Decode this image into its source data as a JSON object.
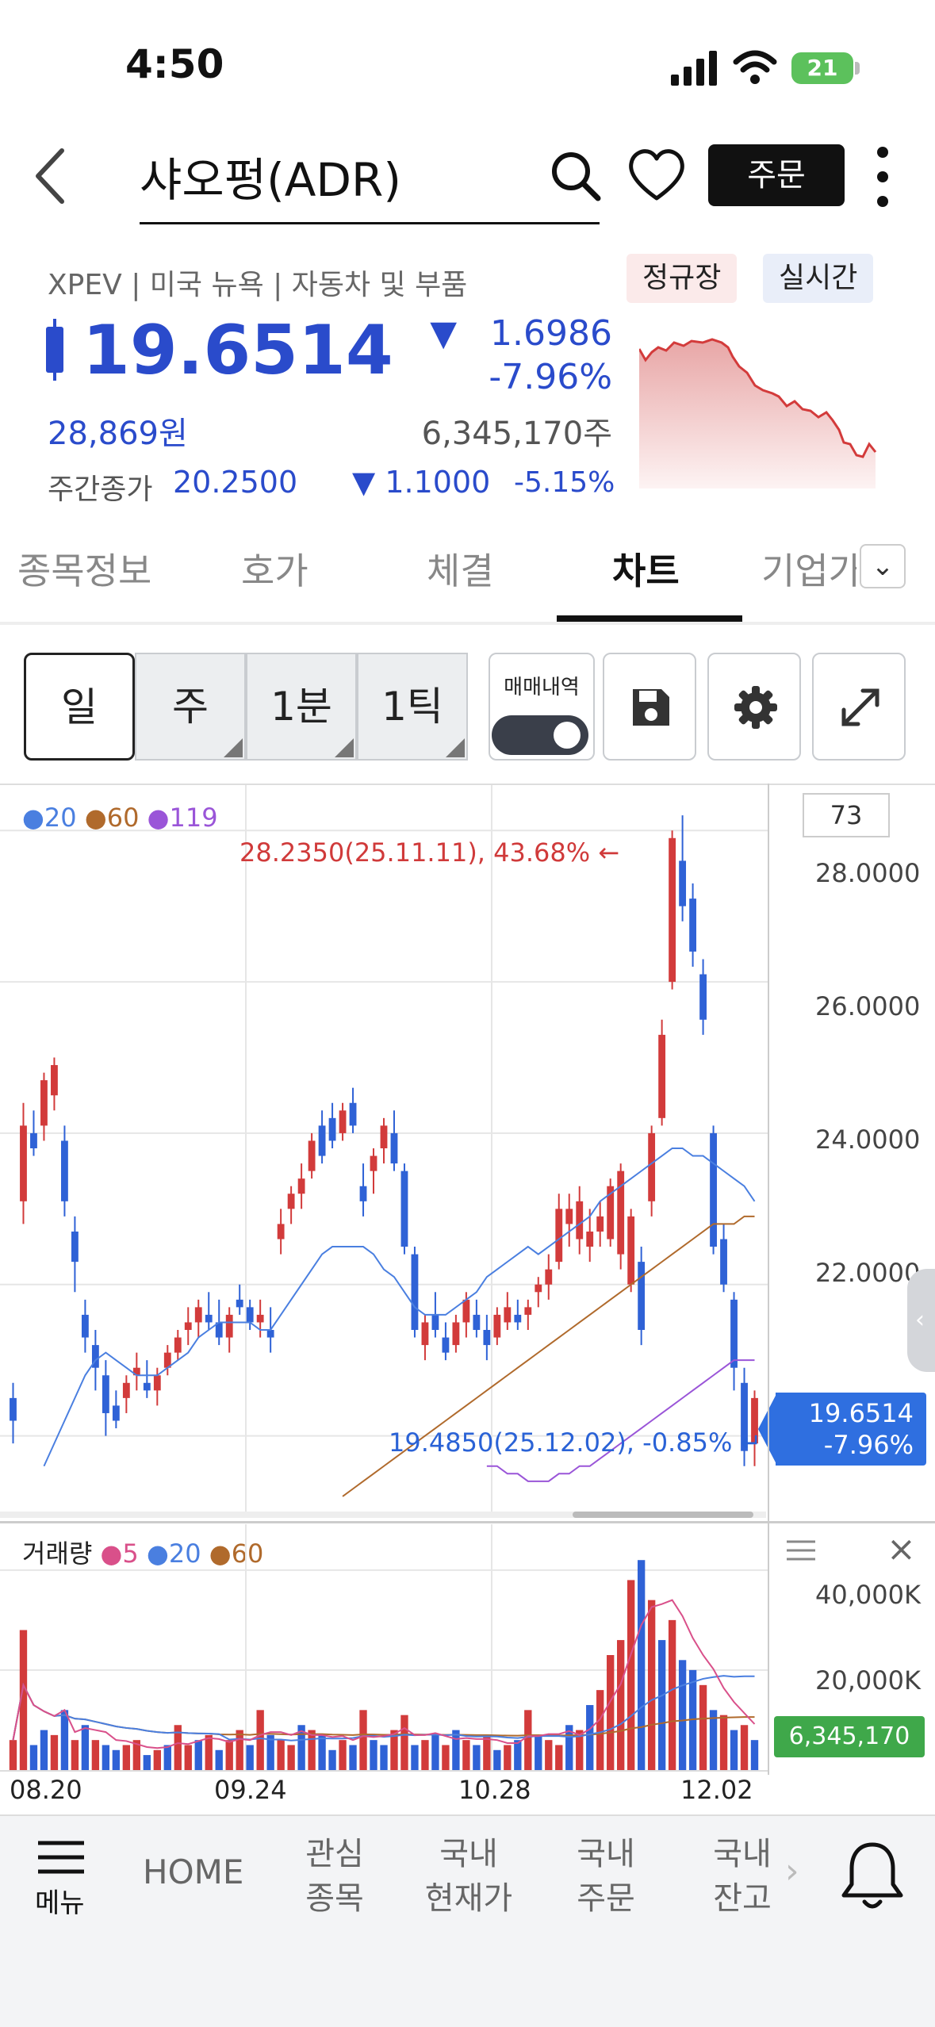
{
  "status": {
    "time": "4:50",
    "battery": "21"
  },
  "header": {
    "title": "샤오펑(ADR)",
    "order_label": "주문"
  },
  "quote": {
    "meta": "XPEV | 미국 뉴욕 | 자동차 및 부품",
    "badge_regular": "정규장",
    "badge_realtime": "실시간",
    "price": "19.6514",
    "change_abs": "1.6986",
    "change_pct": "-7.96%",
    "won_price": "28,869원",
    "volume": "6,345,170주",
    "weekly_label": "주간종가",
    "weekly_close": "20.2500",
    "weekly_change": "1.1000",
    "weekly_pct": "-5.15%",
    "down_glyph": "▼"
  },
  "tabs": [
    "종목정보",
    "호가",
    "체결",
    "차트",
    "기업가"
  ],
  "periods": [
    "일",
    "주",
    "1분",
    "1틱"
  ],
  "tools": {
    "trade_history_label": "매매내역"
  },
  "chart": {
    "ma_legend": [
      {
        "label": "20",
        "color": "#4a7fe0"
      },
      {
        "label": "60",
        "color": "#b06a2c"
      },
      {
        "label": "119",
        "color": "#9a55d8"
      }
    ],
    "count": "73",
    "y_ticks": [
      "28.0000",
      "26.0000",
      "24.0000",
      "22.0000"
    ],
    "high_label": "28.2350(25.11.11), 43.68% ←",
    "low_label": "19.4850(25.12.02), -0.85% ↵",
    "last_price": "19.6514",
    "last_pct": "-7.96%",
    "handle_glyph": "‹"
  },
  "volume_panel": {
    "title": "거래량",
    "legend": [
      {
        "label": "5",
        "color": "#d9508a"
      },
      {
        "label": "20",
        "color": "#4a7fe0"
      },
      {
        "label": "60",
        "color": "#b06a2c"
      }
    ],
    "y_ticks": [
      "40,000K",
      "20,000K"
    ],
    "current": "6,345,170",
    "close_glyph": "×"
  },
  "x_ticks": [
    "08.20",
    "09.24",
    "10.28",
    "12.02"
  ],
  "nav": {
    "menu": "메뉴",
    "home": "HOME",
    "watch_1": "관심",
    "watch_2": "종목",
    "dom_cur_1": "국내",
    "dom_cur_2": "현재가",
    "dom_order_1": "국내",
    "dom_order_2": "주문",
    "dom_bal_1": "국내",
    "dom_bal_2": "잔고",
    "next_glyph": "›"
  },
  "colors": {
    "up": "#d23b3b",
    "down": "#2f62d6",
    "accent": "#2a4bcb"
  },
  "chart_data": {
    "type": "candlestick",
    "ylim": [
      19.0,
      28.6
    ],
    "candles": [
      [
        20.5,
        20.7,
        19.9,
        20.2
      ],
      [
        23.1,
        24.4,
        22.8,
        24.1
      ],
      [
        24.0,
        24.3,
        23.7,
        23.8
      ],
      [
        24.1,
        24.8,
        23.9,
        24.7
      ],
      [
        24.5,
        25.0,
        24.3,
        24.9
      ],
      [
        23.9,
        24.1,
        22.9,
        23.1
      ],
      [
        22.7,
        22.9,
        21.9,
        22.3
      ],
      [
        21.6,
        21.8,
        21.1,
        21.3
      ],
      [
        21.2,
        21.4,
        20.6,
        20.9
      ],
      [
        20.8,
        21.0,
        20.0,
        20.3
      ],
      [
        20.4,
        20.6,
        20.1,
        20.2
      ],
      [
        20.5,
        20.8,
        20.3,
        20.7
      ],
      [
        20.8,
        21.1,
        20.6,
        20.9
      ],
      [
        20.7,
        21.0,
        20.5,
        20.6
      ],
      [
        20.6,
        20.9,
        20.4,
        20.8
      ],
      [
        20.9,
        21.2,
        20.8,
        21.1
      ],
      [
        21.1,
        21.4,
        21.0,
        21.3
      ],
      [
        21.4,
        21.7,
        21.2,
        21.5
      ],
      [
        21.5,
        21.8,
        21.3,
        21.7
      ],
      [
        21.6,
        21.9,
        21.4,
        21.5
      ],
      [
        21.5,
        21.8,
        21.2,
        21.3
      ],
      [
        21.3,
        21.7,
        21.1,
        21.6
      ],
      [
        21.8,
        22.0,
        21.6,
        21.7
      ],
      [
        21.7,
        21.8,
        21.4,
        21.5
      ],
      [
        21.5,
        21.8,
        21.3,
        21.6
      ],
      [
        21.4,
        21.7,
        21.1,
        21.3
      ],
      [
        22.6,
        23.0,
        22.4,
        22.8
      ],
      [
        23.0,
        23.3,
        22.8,
        23.2
      ],
      [
        23.2,
        23.6,
        23.0,
        23.4
      ],
      [
        23.5,
        24.0,
        23.4,
        23.9
      ],
      [
        24.1,
        24.3,
        23.6,
        23.7
      ],
      [
        24.2,
        24.4,
        23.8,
        23.9
      ],
      [
        24.0,
        24.4,
        23.9,
        24.3
      ],
      [
        24.4,
        24.6,
        24.0,
        24.1
      ],
      [
        23.3,
        23.6,
        22.9,
        23.1
      ],
      [
        23.5,
        23.8,
        23.2,
        23.7
      ],
      [
        23.8,
        24.2,
        23.6,
        24.1
      ],
      [
        24.0,
        24.3,
        23.5,
        23.6
      ],
      [
        23.5,
        23.6,
        22.4,
        22.5
      ],
      [
        22.4,
        22.5,
        21.3,
        21.4
      ],
      [
        21.2,
        21.6,
        21.0,
        21.5
      ],
      [
        21.6,
        21.9,
        21.3,
        21.4
      ],
      [
        21.3,
        21.5,
        21.0,
        21.1
      ],
      [
        21.2,
        21.6,
        21.1,
        21.5
      ],
      [
        21.5,
        21.9,
        21.3,
        21.8
      ],
      [
        21.6,
        21.8,
        21.3,
        21.4
      ],
      [
        21.4,
        21.6,
        21.0,
        21.2
      ],
      [
        21.3,
        21.7,
        21.2,
        21.6
      ],
      [
        21.5,
        21.9,
        21.4,
        21.7
      ],
      [
        21.6,
        21.8,
        21.4,
        21.5
      ],
      [
        21.6,
        21.8,
        21.4,
        21.7
      ],
      [
        21.9,
        22.1,
        21.7,
        22.0
      ],
      [
        22.0,
        22.4,
        21.8,
        22.2
      ],
      [
        22.3,
        23.2,
        22.2,
        23.0
      ],
      [
        22.8,
        23.2,
        22.5,
        23.0
      ],
      [
        22.6,
        23.3,
        22.4,
        23.1
      ],
      [
        22.5,
        23.0,
        22.3,
        22.7
      ],
      [
        22.7,
        23.1,
        22.5,
        22.9
      ],
      [
        22.6,
        23.4,
        22.5,
        23.3
      ],
      [
        22.4,
        23.6,
        22.2,
        23.5
      ],
      [
        22.0,
        23.0,
        21.9,
        22.9
      ],
      [
        22.3,
        22.5,
        21.2,
        21.4
      ],
      [
        23.1,
        24.1,
        22.9,
        24.0
      ],
      [
        24.2,
        25.5,
        24.1,
        25.3
      ],
      [
        26.0,
        28.0,
        25.9,
        27.9
      ],
      [
        27.6,
        28.2,
        26.8,
        27.0
      ],
      [
        27.1,
        27.3,
        26.2,
        26.4
      ],
      [
        26.1,
        26.3,
        25.3,
        25.5
      ],
      [
        24.0,
        24.1,
        22.4,
        22.5
      ],
      [
        22.6,
        22.8,
        21.9,
        22.0
      ],
      [
        21.8,
        21.9,
        20.6,
        20.9
      ],
      [
        20.7,
        20.9,
        19.6,
        19.8
      ],
      [
        19.9,
        20.6,
        19.6,
        20.5
      ]
    ],
    "ma20": [
      19.6,
      19.9,
      20.2,
      20.5,
      20.8,
      21.0,
      21.1,
      21.0,
      20.9,
      20.8,
      20.8,
      20.8,
      20.9,
      21.0,
      21.1,
      21.3,
      21.4,
      21.5,
      21.5,
      21.5,
      21.5,
      21.4,
      21.4,
      21.6,
      21.8,
      22.0,
      22.2,
      22.4,
      22.5,
      22.5,
      22.5,
      22.5,
      22.4,
      22.2,
      22.1,
      21.9,
      21.7,
      21.6,
      21.6,
      21.6,
      21.7,
      21.8,
      21.9,
      22.1,
      22.2,
      22.3,
      22.4,
      22.5,
      22.4,
      22.5,
      22.6,
      22.7,
      22.8,
      22.9,
      23.1,
      23.2,
      23.3,
      23.4,
      23.5,
      23.6,
      23.7,
      23.8,
      23.8,
      23.7,
      23.7,
      23.6,
      23.5,
      23.4,
      23.3,
      23.1
    ],
    "ma60": [
      19.2,
      19.3,
      19.4,
      19.5,
      19.6,
      19.7,
      19.8,
      19.9,
      20.0,
      20.1,
      20.2,
      20.3,
      20.4,
      20.5,
      20.6,
      20.7,
      20.8,
      20.9,
      21.0,
      21.1,
      21.2,
      21.3,
      21.4,
      21.5,
      21.6,
      21.7,
      21.8,
      21.9,
      22.0,
      22.1,
      22.2,
      22.3,
      22.4,
      22.5,
      22.6,
      22.7,
      22.8,
      22.8,
      22.8,
      22.9,
      22.9
    ],
    "ma119": [
      19.6,
      19.6,
      19.5,
      19.5,
      19.4,
      19.4,
      19.4,
      19.5,
      19.5,
      19.6,
      19.6,
      19.7,
      19.8,
      19.9,
      20.0,
      20.1,
      20.2,
      20.3,
      20.4,
      20.5,
      20.6,
      20.7,
      20.8,
      20.9,
      21.0,
      21.0,
      21.0
    ],
    "volume": [
      6,
      28,
      5,
      8,
      7,
      12,
      6,
      9,
      6,
      5,
      4,
      5,
      6,
      3,
      4,
      5,
      9,
      5,
      6,
      7,
      4,
      6,
      8,
      5,
      12,
      7,
      6,
      5,
      9,
      8,
      7,
      4,
      6,
      5,
      12,
      6,
      5,
      8,
      11,
      5,
      6,
      7,
      5,
      8,
      6,
      5,
      7,
      4,
      5,
      6,
      12,
      7,
      6,
      5,
      9,
      8,
      13,
      16,
      23,
      26,
      38,
      42,
      34,
      26,
      30,
      22,
      20,
      17,
      12,
      11,
      8,
      9,
      6
    ],
    "volume_up": [
      true,
      true,
      false,
      false,
      true,
      false,
      true,
      false,
      true,
      false,
      false,
      true,
      true,
      false,
      true,
      false,
      true,
      true,
      false,
      true,
      false,
      true,
      true,
      false,
      true,
      false,
      true,
      true,
      false,
      true,
      false,
      false,
      true,
      false,
      true,
      false,
      false,
      true,
      true,
      false,
      true,
      false,
      true,
      false,
      true,
      false,
      true,
      false,
      true,
      false,
      true,
      false,
      true,
      true,
      false,
      true,
      false,
      true,
      true,
      true,
      true,
      false,
      true,
      false,
      true,
      false,
      false,
      true,
      false,
      true,
      false,
      true,
      false
    ],
    "volume_ylim": [
      0,
      46
    ]
  }
}
